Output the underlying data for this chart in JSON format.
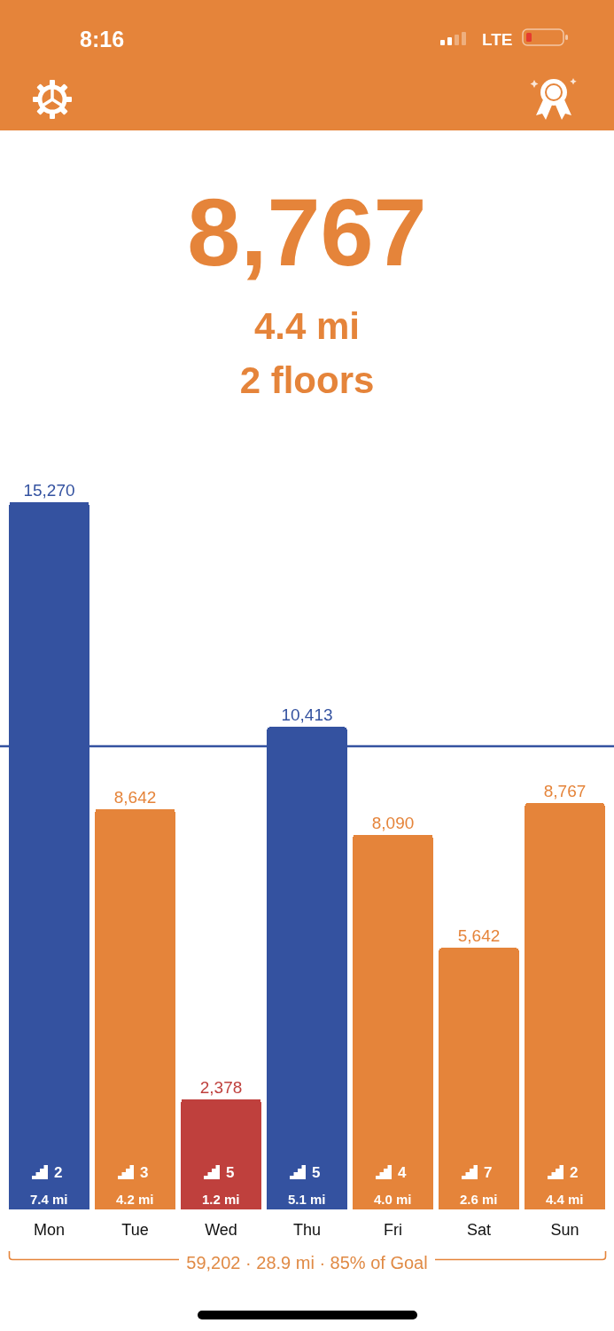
{
  "chart_data": {
    "type": "bar",
    "title": "8,767",
    "subtitle": "4.4 mi",
    "categories": [
      "Mon",
      "Tue",
      "Wed",
      "Thu",
      "Fri",
      "Sat",
      "Sun"
    ],
    "values": [
      15270,
      8642,
      2378,
      10413,
      8090,
      5642,
      8767
    ],
    "colors": [
      "#3452a0",
      "#e5843a",
      "#bf403d",
      "#3452a0",
      "#e5843a",
      "#e5843a",
      "#e5843a"
    ],
    "value_labels": [
      "15,270",
      "8,642",
      "2,378",
      "10,413",
      "8,090",
      "5,642",
      "8,767"
    ],
    "ref_lines": [
      {
        "axis": "y",
        "value": 10000,
        "color": "#3452a0"
      }
    ],
    "tick_labels": "x",
    "annotations": [
      "8:16",
      "LTE",
      "2 floors",
      "59,202 · 28.9 mi · 85% of Goal",
      "2",
      "7.4 mi",
      "3",
      "4.2 mi",
      "5",
      "1.2 mi",
      "5",
      "5.1 mi",
      "4",
      "4.0 mi",
      "7",
      "2.6 mi",
      "2",
      "4.4 mi"
    ]
  }
}
